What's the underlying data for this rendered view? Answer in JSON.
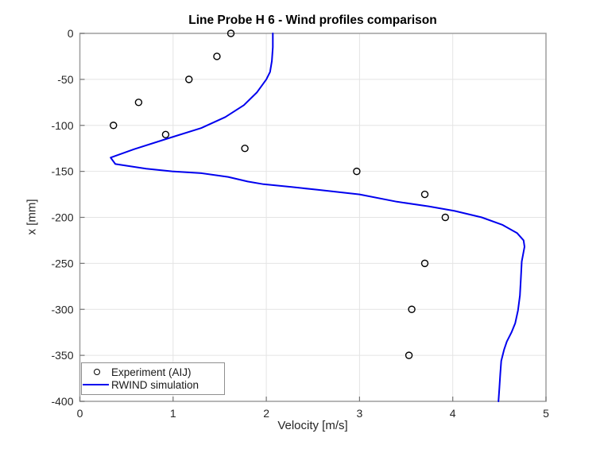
{
  "chart_data": {
    "type": "line",
    "title": "Line Probe H 6 - Wind profiles comparison",
    "xlabel": "Velocity [m/s]",
    "ylabel": "x [mm]",
    "xlim": [
      0,
      5
    ],
    "ylim": [
      -400,
      0
    ],
    "xticks": [
      0,
      1,
      2,
      3,
      4,
      5
    ],
    "yticks": [
      0,
      -50,
      -100,
      -150,
      -200,
      -250,
      -300,
      -350,
      -400
    ],
    "grid": true,
    "legend_position": "bottom-left-inside",
    "series": [
      {
        "name": "Experiment (AIJ)",
        "type": "scatter",
        "marker": "hollow-circle",
        "color": "#000000",
        "points": [
          [
            1.62,
            0
          ],
          [
            1.47,
            -25
          ],
          [
            1.17,
            -50
          ],
          [
            0.63,
            -75
          ],
          [
            0.36,
            -100
          ],
          [
            0.92,
            -110
          ],
          [
            1.77,
            -125
          ],
          [
            2.97,
            -150
          ],
          [
            3.7,
            -175
          ],
          [
            3.92,
            -200
          ],
          [
            3.7,
            -250
          ],
          [
            3.56,
            -300
          ],
          [
            3.53,
            -350
          ]
        ]
      },
      {
        "name": "RWIND simulation",
        "type": "line",
        "color": "#0000ee",
        "points": [
          [
            2.07,
            0
          ],
          [
            2.07,
            -15
          ],
          [
            2.06,
            -30
          ],
          [
            2.04,
            -42
          ],
          [
            2.0,
            -50
          ],
          [
            1.9,
            -64
          ],
          [
            1.76,
            -78
          ],
          [
            1.56,
            -91
          ],
          [
            1.3,
            -103
          ],
          [
            0.95,
            -114
          ],
          [
            0.58,
            -126
          ],
          [
            0.33,
            -135
          ],
          [
            0.38,
            -142
          ],
          [
            0.71,
            -147
          ],
          [
            0.99,
            -150
          ],
          [
            1.3,
            -152
          ],
          [
            1.59,
            -156
          ],
          [
            1.8,
            -161
          ],
          [
            1.97,
            -164
          ],
          [
            2.27,
            -167
          ],
          [
            2.55,
            -170
          ],
          [
            3.0,
            -175
          ],
          [
            3.4,
            -183
          ],
          [
            3.74,
            -188
          ],
          [
            4.02,
            -193
          ],
          [
            4.31,
            -200
          ],
          [
            4.53,
            -208
          ],
          [
            4.69,
            -217
          ],
          [
            4.76,
            -225
          ],
          [
            4.77,
            -232
          ],
          [
            4.74,
            -248
          ],
          [
            4.73,
            -268
          ],
          [
            4.72,
            -285
          ],
          [
            4.7,
            -301
          ],
          [
            4.67,
            -315
          ],
          [
            4.63,
            -325
          ],
          [
            4.58,
            -335
          ],
          [
            4.55,
            -344
          ],
          [
            4.52,
            -356
          ],
          [
            4.51,
            -370
          ],
          [
            4.5,
            -385
          ],
          [
            4.49,
            -400
          ]
        ]
      }
    ],
    "colors": {
      "line": "#0000ee",
      "marker": "#000000",
      "grid": "#e4e4e4",
      "axis_box": "#9e9e9e",
      "tick": "#757575",
      "tick_label": "#262626",
      "background": "#ffffff"
    }
  }
}
